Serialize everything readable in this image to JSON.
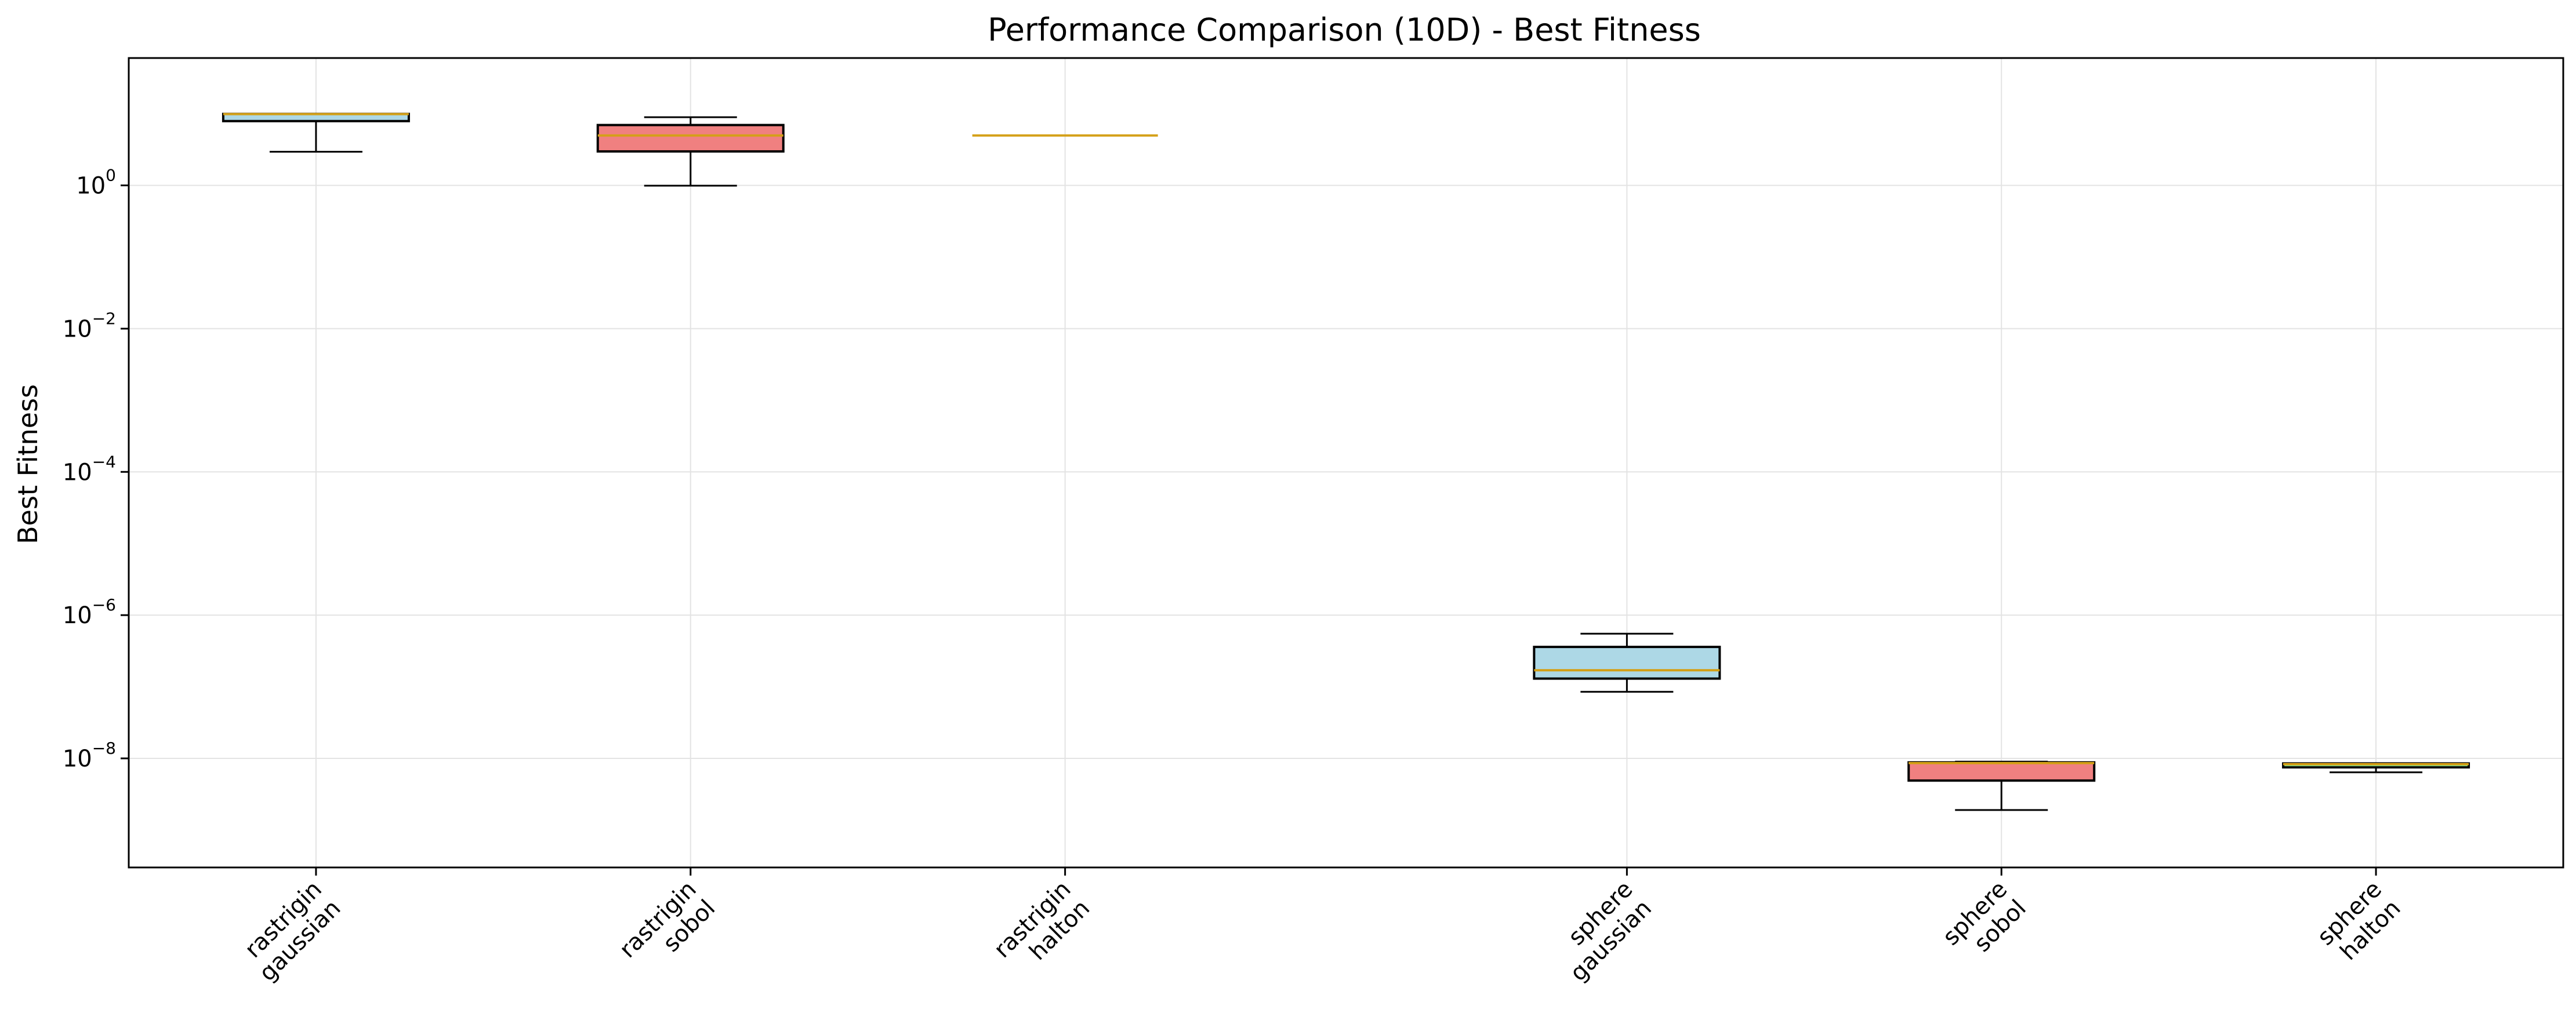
{
  "chart_data": {
    "type": "box",
    "title": "Performance Comparison (10D) - Best Fitness",
    "xlabel": "",
    "ylabel": "Best Fitness",
    "yscale": "log",
    "ylim": [
      3e-10,
      60
    ],
    "grid": true,
    "y_ticks": [
      {
        "value": 1,
        "base": "10",
        "exp": "0"
      },
      {
        "value": 0.01,
        "base": "10",
        "exp": "−2"
      },
      {
        "value": 0.0001,
        "base": "10",
        "exp": "−4"
      },
      {
        "value": 1e-06,
        "base": "10",
        "exp": "−6"
      },
      {
        "value": 1e-08,
        "base": "10",
        "exp": "−8"
      }
    ],
    "categories": [
      {
        "line1": "rastrigin",
        "line2": "gaussian"
      },
      {
        "line1": "rastrigin",
        "line2": "sobol"
      },
      {
        "line1": "rastrigin",
        "line2": "halton"
      },
      {
        "line1": "sphere",
        "line2": "gaussian"
      },
      {
        "line1": "sphere",
        "line2": "sobol"
      },
      {
        "line1": "sphere",
        "line2": "halton"
      }
    ],
    "positions": [
      1,
      2,
      3,
      4.5,
      5.5,
      6.5
    ],
    "x_range": [
      0.5,
      7.0
    ],
    "boxes": [
      {
        "whislo": 2.95,
        "q1": 7.9,
        "med": 9.9,
        "q3": 9.95,
        "whishi": 9.95,
        "fill": "#add8e6"
      },
      {
        "whislo": 0.99,
        "q1": 2.98,
        "med": 4.97,
        "q3": 6.96,
        "whishi": 8.95,
        "fill": "#f08080"
      },
      {
        "whislo": 4.97,
        "q1": 4.97,
        "med": 4.97,
        "q3": 4.97,
        "whishi": 4.97,
        "fill": "#90ee90"
      },
      {
        "whislo": 8.5e-08,
        "q1": 1.3e-07,
        "med": 1.7e-07,
        "q3": 3.6e-07,
        "whishi": 5.5e-07,
        "fill": "#add8e6"
      },
      {
        "whislo": 1.9e-09,
        "q1": 4.9e-09,
        "med": 8.6e-09,
        "q3": 8.8e-09,
        "whishi": 9e-09,
        "fill": "#f08080"
      },
      {
        "whislo": 6.4e-09,
        "q1": 7.5e-09,
        "med": 8.3e-09,
        "q3": 8.5e-09,
        "whishi": 8.5e-09,
        "fill": "#90ee90"
      }
    ],
    "median_color": "#d4a017"
  }
}
